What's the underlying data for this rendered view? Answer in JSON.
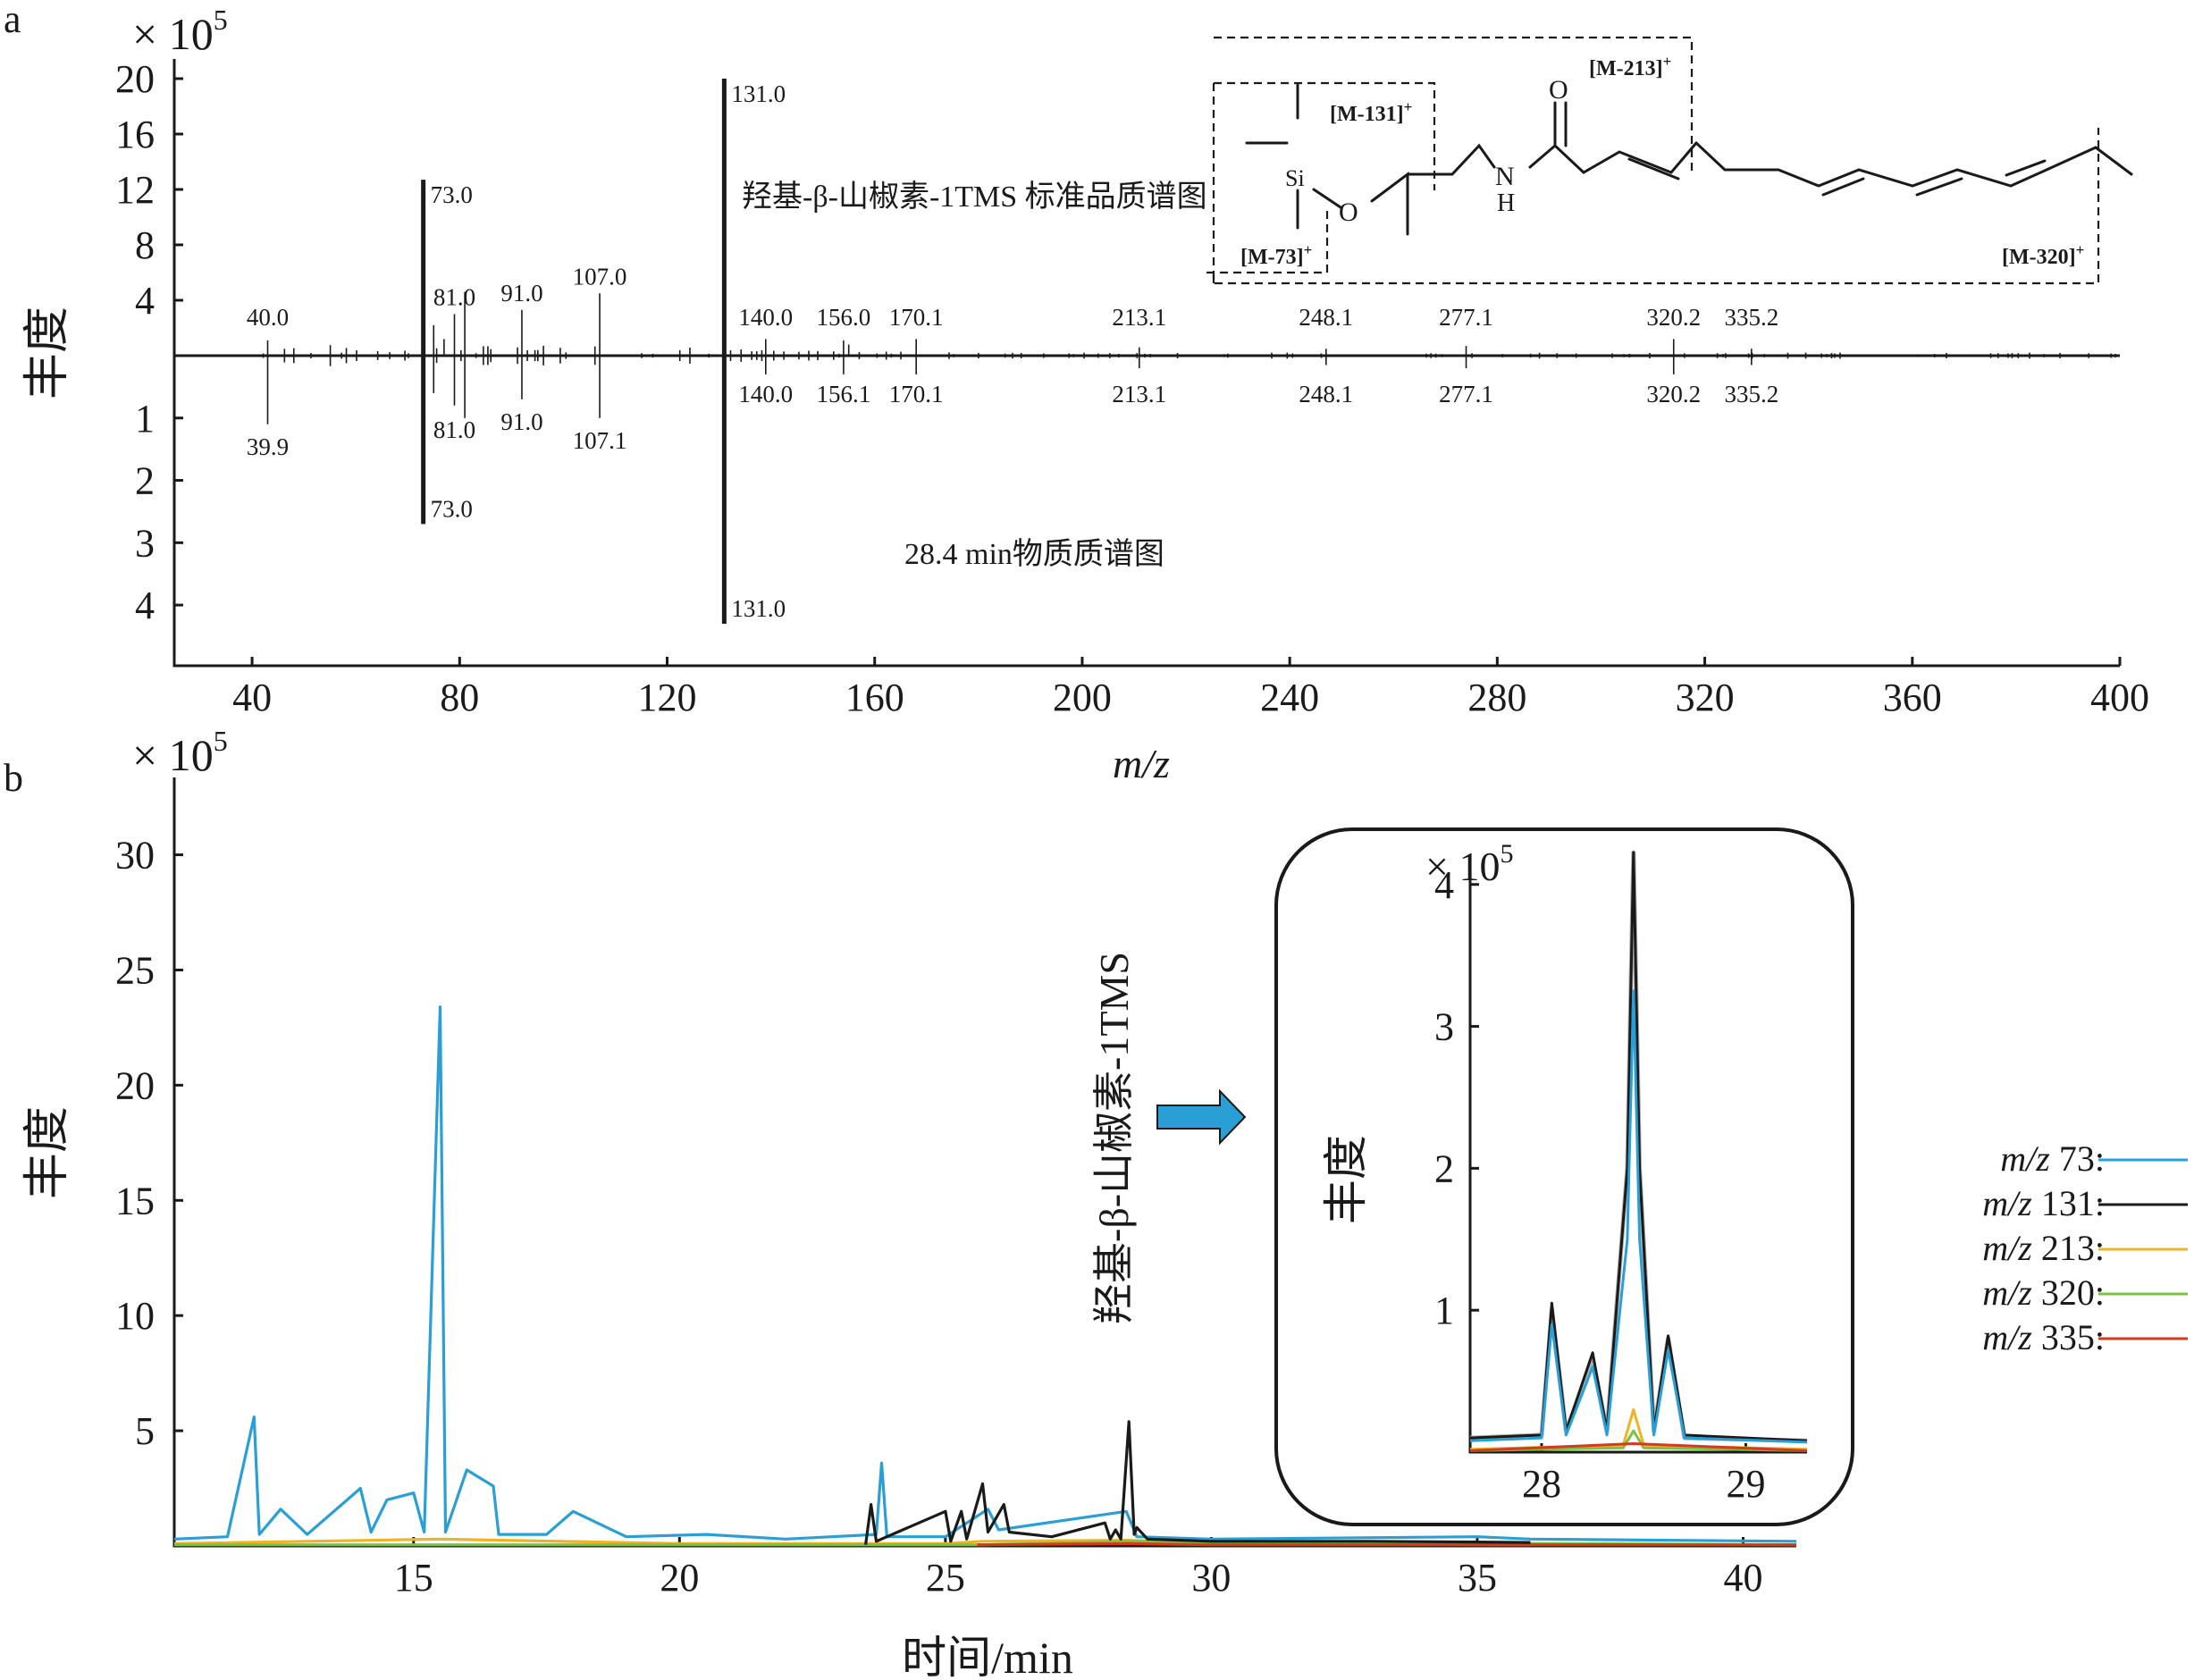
{
  "chart_data": [
    {
      "id": "a",
      "type": "bar",
      "panel_label": "a",
      "y_multiplier": "× 10",
      "y_multiplier_exp": "5",
      "xlabel": "m/z",
      "ylabel": "丰度",
      "xlim": [
        25,
        400
      ],
      "x_ticks": [
        40,
        80,
        120,
        160,
        200,
        240,
        280,
        320,
        360,
        400
      ],
      "ylim_top": [
        0,
        20
      ],
      "y_ticks_top": [
        4,
        8,
        12,
        16,
        20
      ],
      "ylim_bottom": [
        0,
        4.4
      ],
      "y_ticks_bottom": [
        1,
        2,
        3,
        4
      ],
      "series": [
        {
          "name": "羟基-β-山椒素-1TMS 标准品质谱图",
          "direction": "up",
          "peaks": [
            {
              "mz": 43,
              "value": 1.1,
              "label": "40.0"
            },
            {
              "mz": 73,
              "value": 12.7,
              "label": "73.0"
            },
            {
              "mz": 75,
              "value": 2.2,
              "label": ""
            },
            {
              "mz": 77,
              "value": 1.2,
              "label": ""
            },
            {
              "mz": 79,
              "value": 3.0,
              "label": "81.0"
            },
            {
              "mz": 81,
              "value": 4.6,
              "label": ""
            },
            {
              "mz": 92,
              "value": 3.3,
              "label": "91.0"
            },
            {
              "mz": 107,
              "value": 4.5,
              "label": "107.0"
            },
            {
              "mz": 131,
              "value": 20.0,
              "label": "131.0"
            },
            {
              "mz": 139,
              "value": 1.2,
              "label": "140.0"
            },
            {
              "mz": 154,
              "value": 1.1,
              "label": "156.0"
            },
            {
              "mz": 155,
              "value": 0.8,
              "label": ""
            },
            {
              "mz": 168,
              "value": 1.2,
              "label": "170.1"
            },
            {
              "mz": 211,
              "value": 0.6,
              "label": "213.1"
            },
            {
              "mz": 247,
              "value": 0.5,
              "label": "248.1"
            },
            {
              "mz": 274,
              "value": 0.7,
              "label": "277.1"
            },
            {
              "mz": 314,
              "value": 1.2,
              "label": "320.2"
            },
            {
              "mz": 329,
              "value": 0.5,
              "label": "335.2"
            }
          ]
        },
        {
          "name": "28.4 min物质质谱图",
          "direction": "down",
          "peaks": [
            {
              "mz": 43,
              "value": 1.1,
              "label": "39.9"
            },
            {
              "mz": 73,
              "value": 2.7,
              "label": "73.0"
            },
            {
              "mz": 75,
              "value": 0.6,
              "label": ""
            },
            {
              "mz": 79,
              "value": 0.8,
              "label": "81.0"
            },
            {
              "mz": 81,
              "value": 1.0,
              "label": ""
            },
            {
              "mz": 92,
              "value": 0.7,
              "label": "91.0"
            },
            {
              "mz": 107,
              "value": 1.0,
              "label": "107.1"
            },
            {
              "mz": 131,
              "value": 4.3,
              "label": "131.0"
            },
            {
              "mz": 139,
              "value": 0.3,
              "label": "140.0"
            },
            {
              "mz": 154,
              "value": 0.3,
              "label": "156.1"
            },
            {
              "mz": 168,
              "value": 0.3,
              "label": "170.1"
            },
            {
              "mz": 211,
              "value": 0.2,
              "label": "213.1"
            },
            {
              "mz": 247,
              "value": 0.15,
              "label": "248.1"
            },
            {
              "mz": 274,
              "value": 0.2,
              "label": "277.1"
            },
            {
              "mz": 314,
              "value": 0.3,
              "label": "320.2"
            },
            {
              "mz": 329,
              "value": 0.15,
              "label": "335.2"
            }
          ]
        }
      ],
      "annotations": {
        "structure_fragments": [
          "[M-213]",
          "[M-131]",
          "[M-73]",
          "[M-320]"
        ],
        "fragment_charge": "+",
        "atoms": [
          "Si",
          "O",
          "N",
          "H",
          "O"
        ]
      }
    },
    {
      "id": "b",
      "type": "line",
      "panel_label": "b",
      "y_multiplier": "× 10",
      "y_multiplier_exp": "5",
      "xlabel": "时间/min",
      "ylabel": "丰度",
      "xlim": [
        10.5,
        41
      ],
      "ylim": [
        0,
        32
      ],
      "x_ticks": [
        15,
        20,
        25,
        30,
        35,
        40
      ],
      "y_ticks": [
        5,
        10,
        15,
        20,
        25,
        30
      ],
      "series": [
        {
          "name": "m/z 73:",
          "color": "#2a9fd6",
          "points": [
            [
              10.5,
              0.3
            ],
            [
              11.5,
              0.4
            ],
            [
              12.0,
              5.6
            ],
            [
              12.1,
              0.5
            ],
            [
              12.5,
              1.6
            ],
            [
              13.0,
              0.5
            ],
            [
              14.0,
              2.5
            ],
            [
              14.2,
              0.6
            ],
            [
              14.5,
              2.0
            ],
            [
              15.0,
              2.3
            ],
            [
              15.2,
              0.6
            ],
            [
              15.5,
              23.4
            ],
            [
              15.6,
              0.6
            ],
            [
              16.0,
              3.3
            ],
            [
              16.5,
              2.6
            ],
            [
              16.6,
              0.5
            ],
            [
              17.5,
              0.5
            ],
            [
              18.0,
              1.5
            ],
            [
              19.0,
              0.4
            ],
            [
              20.5,
              0.5
            ],
            [
              22.0,
              0.3
            ],
            [
              23.7,
              0.5
            ],
            [
              23.8,
              3.6
            ],
            [
              23.9,
              0.4
            ],
            [
              25.0,
              0.4
            ],
            [
              25.8,
              1.6
            ],
            [
              26.0,
              0.7
            ],
            [
              28.4,
              1.5
            ],
            [
              28.6,
              0.4
            ],
            [
              30.0,
              0.3
            ],
            [
              35.0,
              0.4
            ],
            [
              36.0,
              0.3
            ],
            [
              41.0,
              0.2
            ]
          ]
        },
        {
          "name": "m/z 131:",
          "color": "#1a1a1a",
          "points": [
            [
              23.5,
              0.05
            ],
            [
              23.6,
              1.8
            ],
            [
              23.7,
              0.2
            ],
            [
              25.0,
              1.5
            ],
            [
              25.1,
              0.2
            ],
            [
              25.3,
              1.5
            ],
            [
              25.4,
              0.3
            ],
            [
              25.7,
              2.7
            ],
            [
              25.8,
              0.6
            ],
            [
              26.1,
              1.8
            ],
            [
              26.2,
              0.6
            ],
            [
              27.0,
              0.4
            ],
            [
              28.0,
              1.0
            ],
            [
              28.1,
              0.3
            ],
            [
              28.2,
              0.7
            ],
            [
              28.3,
              0.3
            ],
            [
              28.45,
              5.4
            ],
            [
              28.55,
              0.5
            ],
            [
              28.6,
              0.8
            ],
            [
              28.8,
              0.3
            ],
            [
              30.0,
              0.2
            ],
            [
              33.0,
              0.2
            ],
            [
              36.0,
              0.15
            ]
          ]
        },
        {
          "name": "m/z 213:",
          "color": "#f0b324",
          "points": [
            [
              10.5,
              0.1
            ],
            [
              15.5,
              0.3
            ],
            [
              20.0,
              0.1
            ],
            [
              25.0,
              0.1
            ],
            [
              25.7,
              0.2
            ],
            [
              28.45,
              0.25
            ],
            [
              30.0,
              0.1
            ],
            [
              36.0,
              0.05
            ]
          ]
        },
        {
          "name": "m/z 320:",
          "color": "#7cc242",
          "points": [
            [
              10.5,
              0.05
            ],
            [
              25.7,
              0.05
            ],
            [
              28.45,
              0.2
            ],
            [
              41.0,
              0.05
            ]
          ]
        },
        {
          "name": "m/z 335:",
          "color": "#d33a1e",
          "points": [
            [
              25.6,
              0.05
            ],
            [
              28.45,
              0.1
            ],
            [
              30.0,
              0.05
            ],
            [
              41.0,
              0.05
            ]
          ]
        }
      ],
      "annotations": {
        "compound_label": "羟基-β-山椒素-1TMS"
      }
    },
    {
      "id": "b-inset",
      "type": "line",
      "y_multiplier": "× 10",
      "y_multiplier_exp": "5",
      "ylabel": "丰度",
      "xlim": [
        27.65,
        29.3
      ],
      "ylim": [
        0,
        4.2
      ],
      "x_ticks": [
        28,
        29
      ],
      "y_ticks": [
        1,
        2,
        3,
        4
      ],
      "series": [
        {
          "name": "gray",
          "color": "#b0b0b0",
          "points": [
            [
              27.65,
              0.1
            ],
            [
              28.0,
              0.12
            ],
            [
              28.05,
              1.0
            ],
            [
              28.12,
              0.15
            ],
            [
              28.25,
              0.65
            ],
            [
              28.32,
              0.15
            ],
            [
              28.42,
              2.0
            ],
            [
              28.45,
              4.3
            ],
            [
              28.48,
              2.0
            ],
            [
              28.55,
              0.15
            ],
            [
              28.62,
              0.8
            ],
            [
              28.7,
              0.1
            ],
            [
              29.3,
              0.08
            ]
          ]
        },
        {
          "name": "m/z 131:",
          "color": "#1a1a1a",
          "points": [
            [
              27.65,
              0.1
            ],
            [
              28.0,
              0.12
            ],
            [
              28.05,
              1.05
            ],
            [
              28.12,
              0.15
            ],
            [
              28.25,
              0.7
            ],
            [
              28.32,
              0.15
            ],
            [
              28.42,
              2.0
            ],
            [
              28.45,
              4.3
            ],
            [
              28.48,
              2.0
            ],
            [
              28.55,
              0.15
            ],
            [
              28.62,
              0.82
            ],
            [
              28.7,
              0.12
            ],
            [
              29.3,
              0.08
            ]
          ]
        },
        {
          "name": "m/z 73:",
          "color": "#2a9fd6",
          "points": [
            [
              27.65,
              0.08
            ],
            [
              28.0,
              0.1
            ],
            [
              28.05,
              0.9
            ],
            [
              28.12,
              0.12
            ],
            [
              28.25,
              0.6
            ],
            [
              28.32,
              0.12
            ],
            [
              28.42,
              1.5
            ],
            [
              28.45,
              3.25
            ],
            [
              28.48,
              1.5
            ],
            [
              28.55,
              0.12
            ],
            [
              28.62,
              0.72
            ],
            [
              28.7,
              0.1
            ],
            [
              29.3,
              0.07
            ]
          ]
        },
        {
          "name": "m/z 213:",
          "color": "#f0b324",
          "points": [
            [
              27.65,
              0.02
            ],
            [
              28.4,
              0.05
            ],
            [
              28.45,
              0.3
            ],
            [
              28.5,
              0.05
            ],
            [
              29.3,
              0.02
            ]
          ]
        },
        {
          "name": "m/z 320:",
          "color": "#7cc242",
          "points": [
            [
              27.65,
              0.01
            ],
            [
              28.4,
              0.03
            ],
            [
              28.45,
              0.15
            ],
            [
              28.5,
              0.03
            ],
            [
              29.3,
              0.01
            ]
          ]
        },
        {
          "name": "m/z 335:",
          "color": "#d33a1e",
          "points": [
            [
              27.65,
              0.01
            ],
            [
              28.45,
              0.06
            ],
            [
              29.3,
              0.01
            ]
          ]
        }
      ]
    }
  ]
}
